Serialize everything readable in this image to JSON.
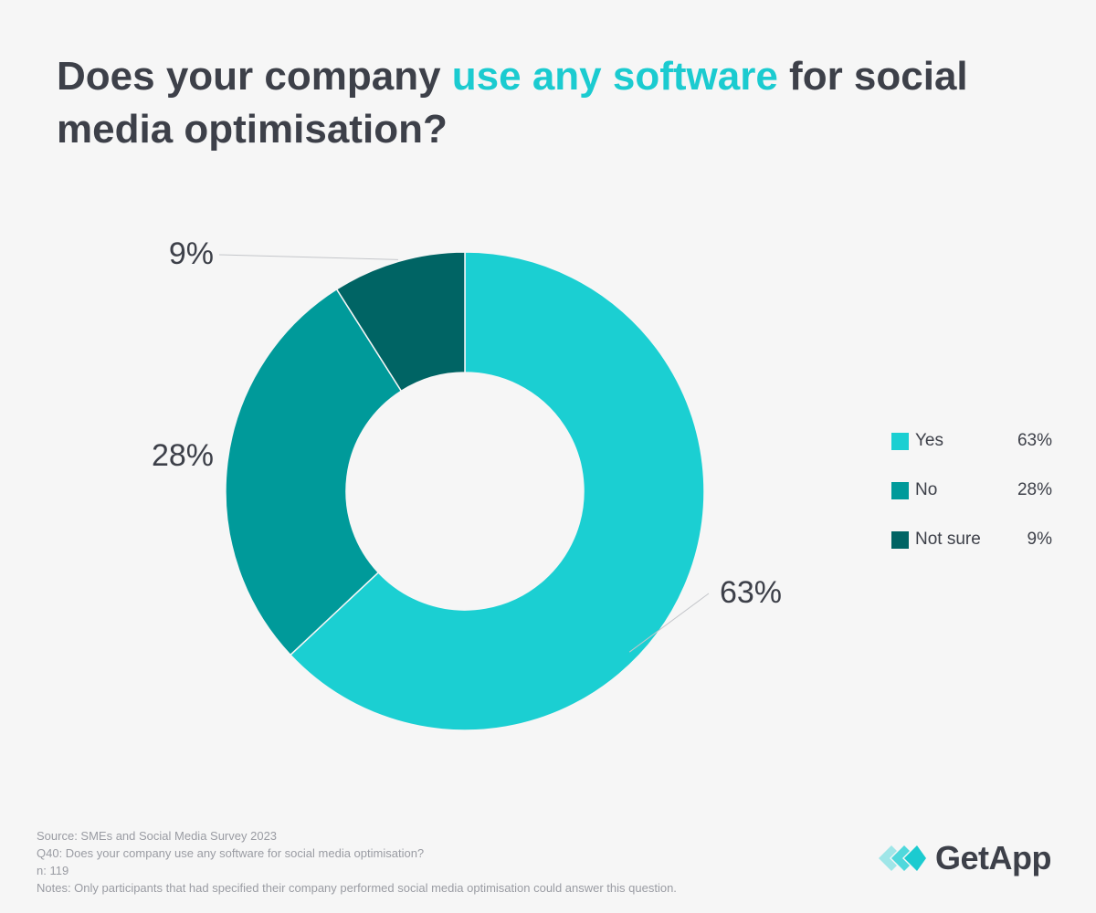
{
  "title": {
    "before": "Does your company ",
    "highlight": "use any software",
    "after": " for social media optimisation?"
  },
  "chart_data": {
    "type": "pie",
    "subtype": "donut",
    "title": "Does your company use any software for social media optimisation?",
    "categories": [
      "Yes",
      "No",
      "Not sure"
    ],
    "values": [
      63,
      28,
      9
    ],
    "labels": [
      "63%",
      "28%",
      "9%"
    ],
    "colors": [
      "#1bcfd2",
      "#009a9a",
      "#006464"
    ],
    "legend_position": "right"
  },
  "legend": [
    {
      "label": "Yes",
      "value": "63%",
      "color": "#1bcfd2"
    },
    {
      "label": "No",
      "value": "28%",
      "color": "#009a9a"
    },
    {
      "label": "Not sure",
      "value": "9%",
      "color": "#006464"
    }
  ],
  "footer": {
    "source": "Source: SMEs and Social Media Survey 2023",
    "question": "Q40: Does your company use any software for social media optimisation?",
    "n": "n: 119",
    "notes": "Notes: Only participants that had specified their company performed social media optimisation could answer this question."
  },
  "brand": {
    "name": "GetApp",
    "logo_icon": "getapp-chevrons-icon",
    "logo_color": "#1bcbd0"
  },
  "colors": {
    "text": "#3d4049",
    "accent": "#1bcbd0",
    "background": "#f6f6f6",
    "muted": "#9a9ca3"
  }
}
